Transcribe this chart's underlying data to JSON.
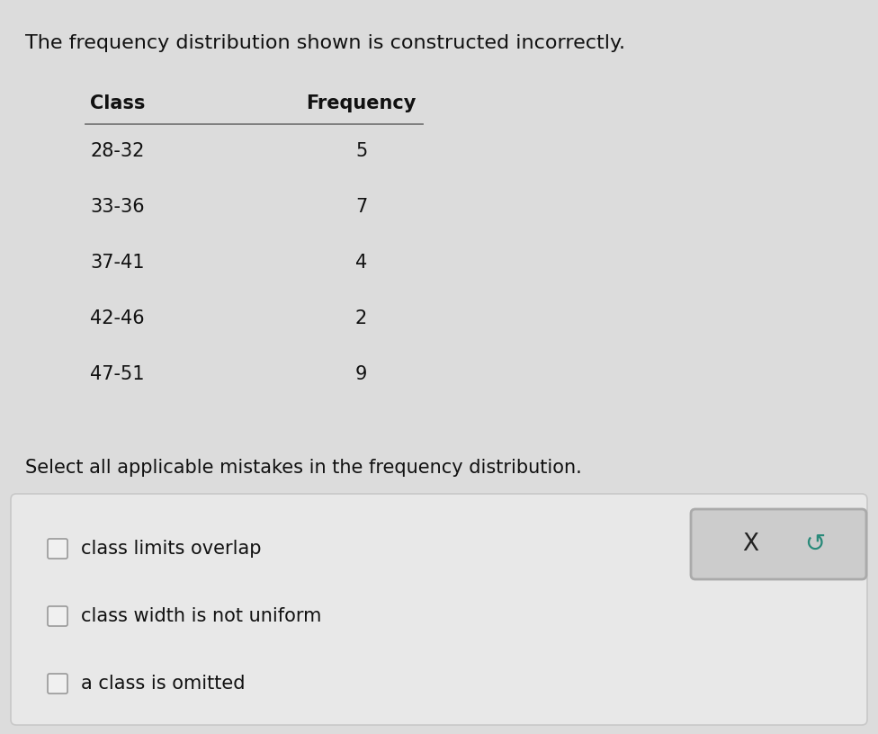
{
  "title": "The frequency distribution shown is constructed incorrectly.",
  "table_header_class": "Class",
  "table_header_freq": "Frequency",
  "table_rows": [
    [
      "28-32",
      "5"
    ],
    [
      "33-36",
      "7"
    ],
    [
      "37-41",
      "4"
    ],
    [
      "42-46",
      "2"
    ],
    [
      "47-51",
      "9"
    ]
  ],
  "select_text": "Select all applicable mistakes in the frequency distribution.",
  "options": [
    "class limits overlap",
    "class width is not uniform",
    "a class is omitted"
  ],
  "bg_color": "#dcdcdc",
  "box_color": "#e8e8e8",
  "box_edge_color": "#c8c8c8",
  "btn_color": "#cccccc",
  "btn_edge_color": "#aaaaaa",
  "text_color": "#111111",
  "title_fontsize": 16,
  "header_fontsize": 15,
  "body_fontsize": 15,
  "select_fontsize": 15,
  "option_fontsize": 15,
  "x_symbol": "X",
  "undo_symbol": "↺"
}
